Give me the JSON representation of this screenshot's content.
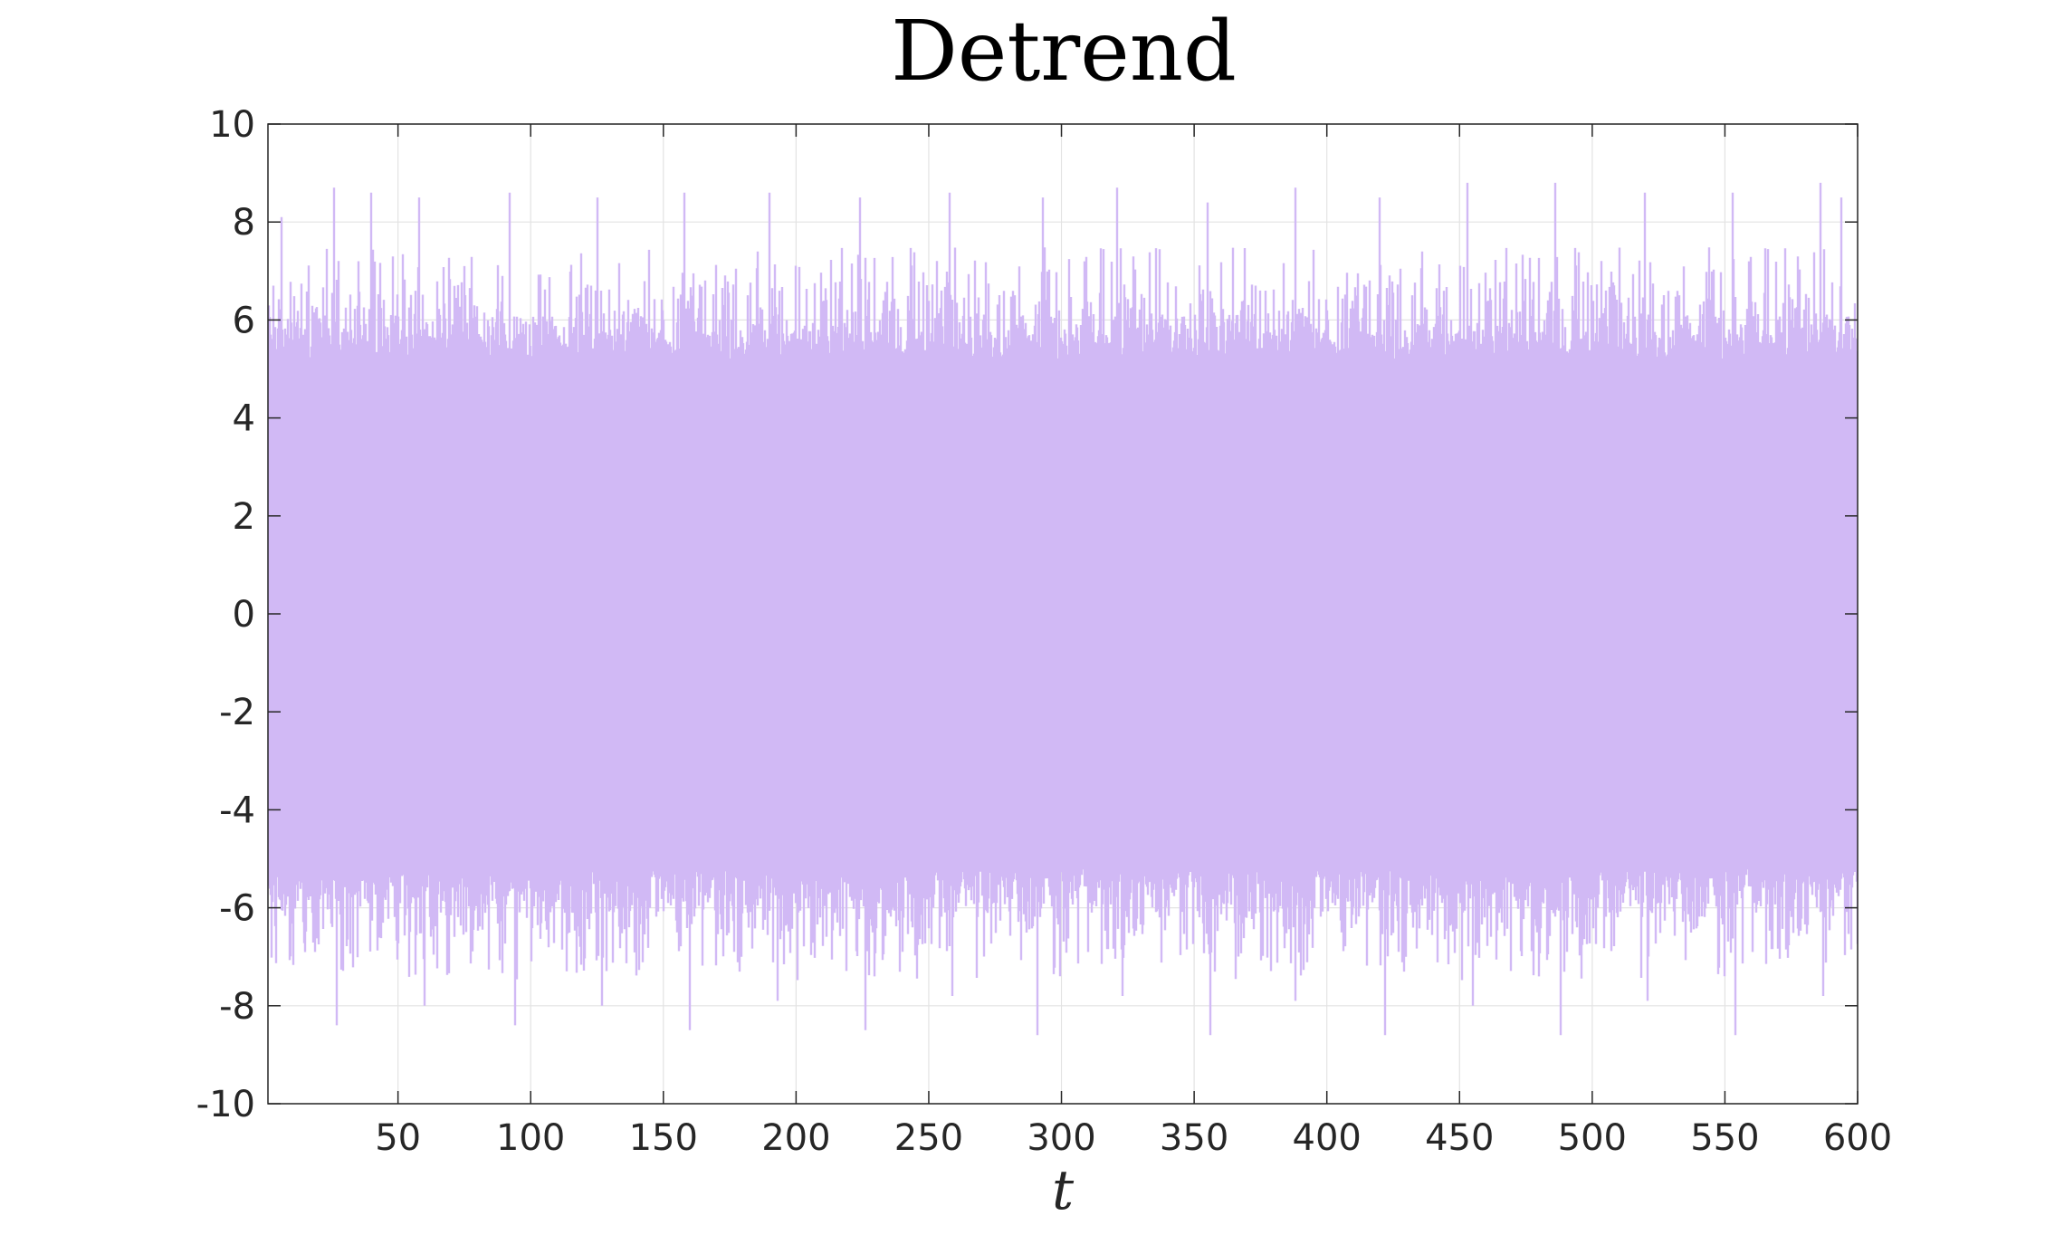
{
  "chart_data": {
    "type": "line",
    "title": "Detrend",
    "xlabel": "t",
    "ylabel": "",
    "xlim": [
      1,
      600
    ],
    "ylim": [
      -10,
      10
    ],
    "xticks": [
      50,
      100,
      150,
      200,
      250,
      300,
      350,
      400,
      450,
      500,
      550,
      600
    ],
    "yticks": [
      -10,
      -8,
      -6,
      -4,
      -2,
      0,
      2,
      4,
      6,
      8,
      10
    ],
    "xtick_labels": [
      "50",
      "100",
      "150",
      "200",
      "250",
      "300",
      "350",
      "400",
      "450",
      "500",
      "550",
      "600"
    ],
    "ytick_labels": [
      "-10",
      "-8",
      "-6",
      "-4",
      "-2",
      "0",
      "2",
      "4",
      "6",
      "8",
      "10"
    ],
    "grid": true,
    "series": [
      {
        "color": "#d1b9f5",
        "sampling_interval": 0.05,
        "envelope_peaks": [
          {
            "x": 3,
            "y": 6.7
          },
          {
            "x": 6,
            "y": 8.1
          },
          {
            "x": 26,
            "y": 8.7
          },
          {
            "x": 40,
            "y": 8.6
          },
          {
            "x": 58,
            "y": 8.5
          },
          {
            "x": 92,
            "y": 8.6
          },
          {
            "x": 125,
            "y": 8.5
          },
          {
            "x": 158,
            "y": 8.6
          },
          {
            "x": 190,
            "y": 8.6
          },
          {
            "x": 224,
            "y": 8.5
          },
          {
            "x": 258,
            "y": 8.6
          },
          {
            "x": 293,
            "y": 8.5
          },
          {
            "x": 321,
            "y": 8.7
          },
          {
            "x": 355,
            "y": 8.4
          },
          {
            "x": 388,
            "y": 8.7
          },
          {
            "x": 420,
            "y": 8.5
          },
          {
            "x": 453,
            "y": 8.8
          },
          {
            "x": 486,
            "y": 8.8
          },
          {
            "x": 520,
            "y": 8.6
          },
          {
            "x": 553,
            "y": 8.6
          },
          {
            "x": 586,
            "y": 8.8
          },
          {
            "x": 594,
            "y": 8.5
          }
        ],
        "envelope_troughs": [
          {
            "x": 27,
            "y": -8.4
          },
          {
            "x": 60,
            "y": -8.0
          },
          {
            "x": 94,
            "y": -8.4
          },
          {
            "x": 127,
            "y": -8.0
          },
          {
            "x": 160,
            "y": -8.5
          },
          {
            "x": 193,
            "y": -7.9
          },
          {
            "x": 226,
            "y": -8.5
          },
          {
            "x": 259,
            "y": -7.8
          },
          {
            "x": 291,
            "y": -8.6
          },
          {
            "x": 323,
            "y": -7.8
          },
          {
            "x": 356,
            "y": -8.6
          },
          {
            "x": 388,
            "y": -7.9
          },
          {
            "x": 422,
            "y": -8.6
          },
          {
            "x": 455,
            "y": -8.0
          },
          {
            "x": 488,
            "y": -8.6
          },
          {
            "x": 521,
            "y": -7.9
          },
          {
            "x": 554,
            "y": -8.6
          },
          {
            "x": 587,
            "y": -7.8
          }
        ],
        "typical_range": [
          -7,
          7
        ]
      }
    ]
  }
}
